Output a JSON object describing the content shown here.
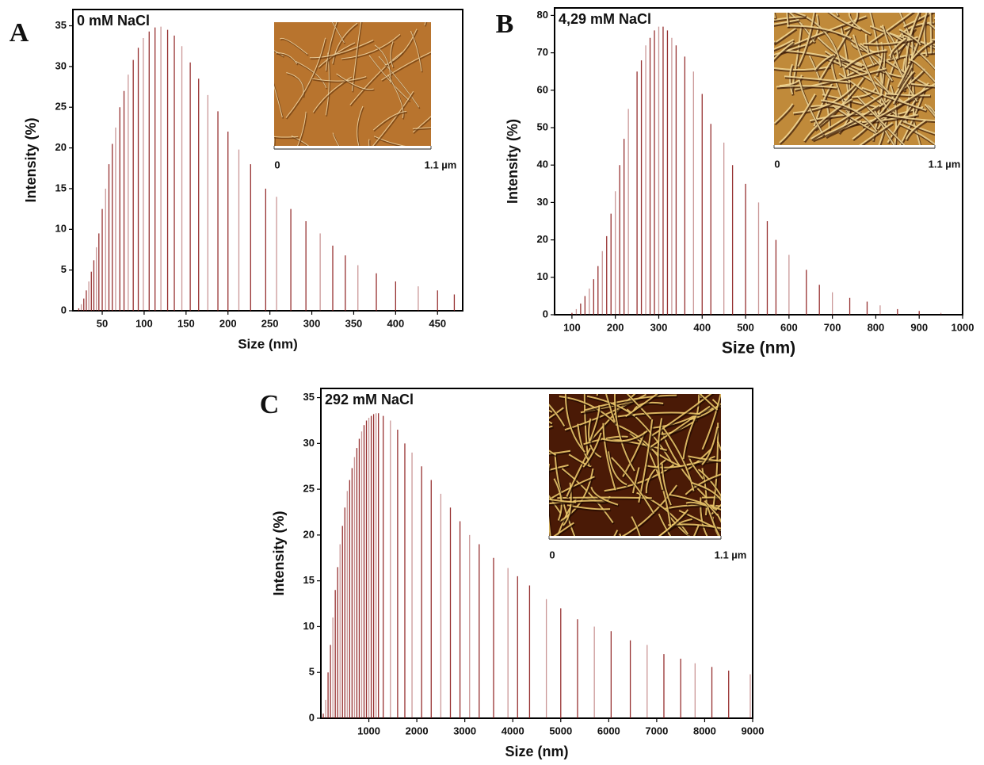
{
  "chart_data": [
    {
      "type": "stem",
      "panel": "A",
      "title": "0 mM NaCl",
      "xlabel": "Size (nm)",
      "ylabel": "Intensity (%)",
      "color": "#8b1a1a",
      "x": [
        22,
        25,
        28,
        31,
        34,
        37,
        40,
        43,
        46,
        50,
        54,
        58,
        62,
        66,
        71,
        76,
        81,
        87,
        93,
        99,
        106,
        113,
        120,
        128,
        136,
        145,
        155,
        165,
        176,
        188,
        200,
        213,
        227,
        245,
        258,
        275,
        293,
        310,
        325,
        340,
        355,
        377,
        400,
        427,
        450,
        470
      ],
      "values": [
        0.3,
        0.8,
        1.5,
        2.5,
        3.6,
        4.8,
        6.2,
        7.8,
        9.5,
        12.5,
        15,
        18,
        20.5,
        22.5,
        25,
        27,
        29,
        30.8,
        32.3,
        33.5,
        34.3,
        34.8,
        34.9,
        34.5,
        33.8,
        32.5,
        30.5,
        28.5,
        26.5,
        24.5,
        22,
        19.8,
        18,
        15,
        14,
        12.5,
        11,
        9.5,
        8,
        6.8,
        5.6,
        4.6,
        3.6,
        3,
        2.5,
        2
      ],
      "xlim": [
        15,
        480
      ],
      "xticks": [
        50,
        100,
        150,
        200,
        250,
        300,
        350,
        400,
        450
      ],
      "ylim": [
        0,
        37
      ],
      "yticks": [
        0,
        5,
        10,
        15,
        20,
        25,
        30,
        35
      ],
      "inset": {
        "scale_start": "0",
        "scale_end": "1.1 µm"
      }
    },
    {
      "type": "stem",
      "panel": "B",
      "title": "4,29 mM NaCl",
      "xlabel": "Size (nm)",
      "ylabel": "Intensity (%)",
      "color": "#8b1a1a",
      "x": [
        100,
        110,
        120,
        130,
        140,
        150,
        160,
        170,
        180,
        190,
        200,
        210,
        220,
        230,
        250,
        260,
        270,
        280,
        290,
        300,
        310,
        320,
        330,
        340,
        360,
        380,
        400,
        420,
        450,
        470,
        500,
        530,
        550,
        570,
        600,
        640,
        670,
        700,
        740,
        780,
        810,
        850,
        900,
        950
      ],
      "values": [
        0.5,
        1.5,
        3,
        5,
        7,
        9.5,
        13,
        17,
        21,
        27,
        33,
        40,
        47,
        55,
        65,
        68,
        72,
        74,
        76,
        77,
        77,
        76,
        74,
        72,
        69,
        65,
        59,
        51,
        46,
        40,
        35,
        30,
        25,
        20,
        16,
        12,
        8,
        6,
        4.5,
        3.5,
        2.5,
        1.5,
        1,
        0.5
      ],
      "xlim": [
        60,
        1000
      ],
      "xticks": [
        100,
        200,
        300,
        400,
        500,
        600,
        700,
        800,
        900,
        1000
      ],
      "ylim": [
        0,
        82
      ],
      "yticks": [
        0,
        10,
        20,
        30,
        40,
        50,
        60,
        70,
        80
      ],
      "inset": {
        "scale_start": "0",
        "scale_end": "1.1 µm"
      }
    },
    {
      "type": "stem",
      "panel": "C",
      "title": "292 mM NaCl",
      "xlabel": "Size (nm)",
      "ylabel": "Intensity (%)",
      "color": "#8b1a1a",
      "x": [
        50,
        100,
        150,
        200,
        250,
        300,
        350,
        400,
        450,
        500,
        550,
        600,
        650,
        700,
        750,
        800,
        850,
        900,
        950,
        1000,
        1050,
        1100,
        1150,
        1200,
        1300,
        1450,
        1600,
        1750,
        1900,
        2100,
        2300,
        2500,
        2700,
        2900,
        3100,
        3300,
        3600,
        3900,
        4100,
        4350,
        4700,
        5000,
        5350,
        5700,
        6050,
        6450,
        6800,
        7150,
        7500,
        7800,
        8150,
        8500,
        8950
      ],
      "values": [
        0.5,
        2,
        5,
        8,
        11,
        14,
        16.5,
        19,
        21,
        23,
        24.8,
        26,
        27.3,
        28.5,
        29.5,
        30.5,
        31.3,
        32,
        32.5,
        32.8,
        33,
        33.2,
        33.3,
        33.3,
        33,
        32.5,
        31.5,
        30,
        29,
        27.5,
        26,
        24.5,
        23,
        21.5,
        20,
        19,
        17.5,
        16.4,
        15.5,
        14.5,
        13,
        12,
        10.8,
        10,
        9.5,
        8.5,
        8,
        7,
        6.5,
        6,
        5.6,
        5.2,
        4.8
      ],
      "xlim": [
        0,
        9000
      ],
      "xticks": [
        1000,
        2000,
        3000,
        4000,
        5000,
        6000,
        7000,
        8000,
        9000
      ],
      "ylim": [
        0,
        36
      ],
      "yticks": [
        0,
        5,
        10,
        15,
        20,
        25,
        30,
        35
      ],
      "inset": {
        "scale_start": "0",
        "scale_end": "1.1 µm"
      }
    }
  ]
}
